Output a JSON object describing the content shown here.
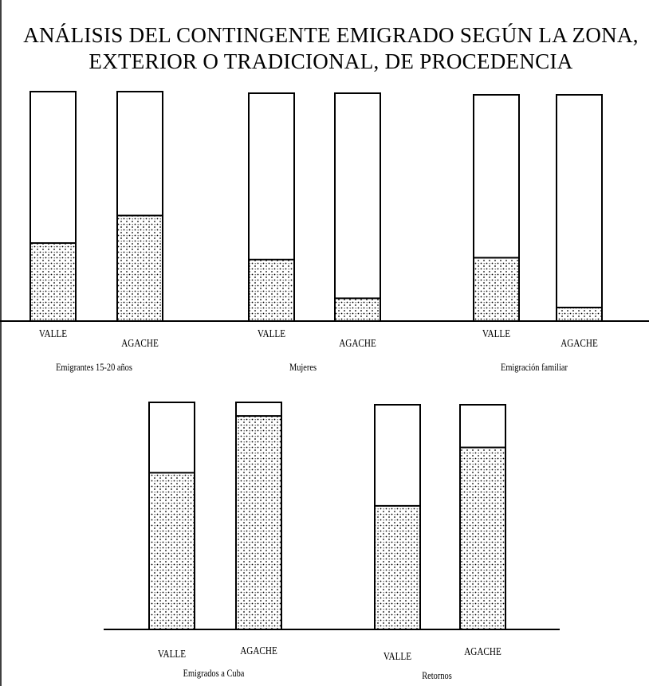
{
  "title": "ANÁLISIS DEL CONTINGENTE EMIGRADO SEGÚN LA ZONA, EXTERIOR O TRADICIONAL, DE PROCEDENCIA",
  "chart_data": [
    {
      "type": "bar",
      "x_label": "Emigrantes 15-20 años",
      "categories": [
        "VALLE",
        "AGACHE"
      ],
      "values": [
        34,
        46
      ],
      "ylim": [
        0,
        100
      ]
    },
    {
      "type": "bar",
      "x_label": "Mujeres",
      "categories": [
        "VALLE",
        "AGACHE"
      ],
      "values": [
        27,
        10
      ],
      "ylim": [
        0,
        100
      ]
    },
    {
      "type": "bar",
      "x_label": "Emigración familiar",
      "categories": [
        "VALLE",
        "AGACHE"
      ],
      "values": [
        28,
        6
      ],
      "ylim": [
        0,
        100
      ]
    },
    {
      "type": "bar",
      "x_label": "Emigrados a Cuba",
      "categories": [
        "VALLE",
        "AGACHE"
      ],
      "values": [
        69,
        94
      ],
      "ylim": [
        0,
        100
      ]
    },
    {
      "type": "bar",
      "x_label": "Retornos",
      "categories": [
        "VALLE",
        "AGACHE"
      ],
      "values": [
        55,
        81
      ],
      "ylim": [
        0,
        100
      ]
    }
  ]
}
